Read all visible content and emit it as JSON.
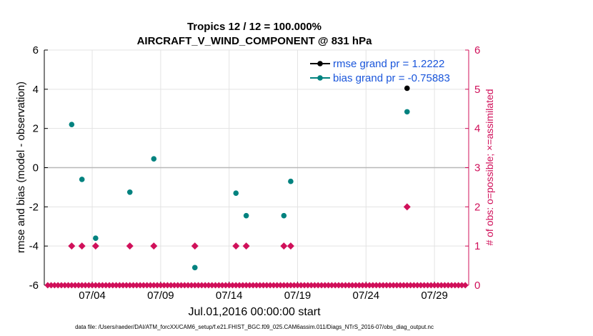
{
  "chart_data": {
    "type": "scatter",
    "title_line1": "Tropics 12 / 12 = 100.000%",
    "title_line2": "AIRCRAFT_V_WIND_COMPONENT @ 831 hPa",
    "ylabel": "rmse and bias (model - observation)",
    "y2label": "# of obs: o=possible; ×=assimilated",
    "xlabel": "Jul.01,2016 00:00:00 start",
    "footer": "data file: /Users/raeder/DAI/ATM_forcXX/CAM6_setup/f.e21.FHIST_BGC.f09_025.CAM6assim.011/Diags_NTrS_2016-07/obs_diag_output.nc",
    "xlim": [
      0.5,
      31.5
    ],
    "ylim": [
      -6,
      6
    ],
    "y2lim": [
      0,
      6
    ],
    "x_ticks": [
      {
        "value": 4,
        "label": "07/04"
      },
      {
        "value": 9,
        "label": "07/09"
      },
      {
        "value": 14,
        "label": "07/14"
      },
      {
        "value": 19,
        "label": "07/19"
      },
      {
        "value": 24,
        "label": "07/24"
      },
      {
        "value": 29,
        "label": "07/29"
      }
    ],
    "y_ticks": [
      -6,
      -4,
      -2,
      0,
      2,
      4,
      6
    ],
    "y2_ticks": [
      0,
      1,
      2,
      3,
      4,
      5,
      6
    ],
    "grid": true,
    "zero_line": 0,
    "legend_position": "top-right",
    "series": [
      {
        "name": "rmse grand pr = 1.2222",
        "color": "#000000",
        "axis": "left",
        "points": [
          [
            27.0,
            4.05
          ]
        ]
      },
      {
        "name": "bias grand pr = -0.75883",
        "color": "#00827f",
        "axis": "left",
        "points": [
          [
            2.5,
            2.2
          ],
          [
            3.25,
            -0.6
          ],
          [
            4.25,
            -3.6
          ],
          [
            6.75,
            -1.25
          ],
          [
            8.5,
            0.45
          ],
          [
            11.5,
            -5.1
          ],
          [
            14.5,
            -1.3
          ],
          [
            15.25,
            -2.45
          ],
          [
            18.0,
            -2.45
          ],
          [
            18.5,
            -0.7
          ],
          [
            27.0,
            2.85
          ]
        ]
      },
      {
        "color": "#d0105a",
        "axis": "right",
        "marker": "diamond",
        "points": [
          [
            2.5,
            1
          ],
          [
            3.25,
            1
          ],
          [
            4.25,
            1
          ],
          [
            6.75,
            1
          ],
          [
            8.5,
            1
          ],
          [
            11.5,
            1
          ],
          [
            14.5,
            1
          ],
          [
            15.25,
            1
          ],
          [
            18.0,
            1
          ],
          [
            18.5,
            1
          ],
          [
            27.0,
            2
          ]
        ],
        "zero_row": {
          "start": 0.75,
          "end": 31.25,
          "step": 0.25,
          "value": 0
        }
      }
    ]
  }
}
